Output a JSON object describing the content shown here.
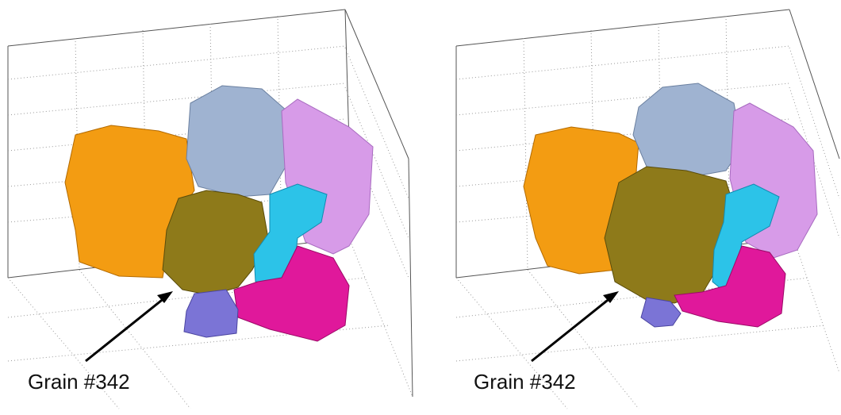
{
  "panels": [
    {
      "label": "Grain #342",
      "grains": [
        {
          "name": "orange-grain",
          "color": "#f39c12"
        },
        {
          "name": "lightblue-grain",
          "color": "#9fb3d1"
        },
        {
          "name": "pink-grain",
          "color": "#d79be8"
        },
        {
          "name": "olive-grain",
          "color": "#8e7a1a"
        },
        {
          "name": "cyan-grain",
          "color": "#2cc3e8"
        },
        {
          "name": "magenta-grain",
          "color": "#e0189b"
        },
        {
          "name": "purple-grain",
          "color": "#7b74d6"
        }
      ]
    },
    {
      "label": "Grain #342",
      "grains": [
        {
          "name": "orange-grain",
          "color": "#f39c12"
        },
        {
          "name": "lightblue-grain",
          "color": "#9fb3d1"
        },
        {
          "name": "pink-grain",
          "color": "#d79be8"
        },
        {
          "name": "olive-grain",
          "color": "#8e7a1a"
        },
        {
          "name": "cyan-grain",
          "color": "#2cc3e8"
        },
        {
          "name": "magenta-grain",
          "color": "#e0189b"
        },
        {
          "name": "purple-grain",
          "color": "#7b74d6"
        }
      ]
    }
  ]
}
